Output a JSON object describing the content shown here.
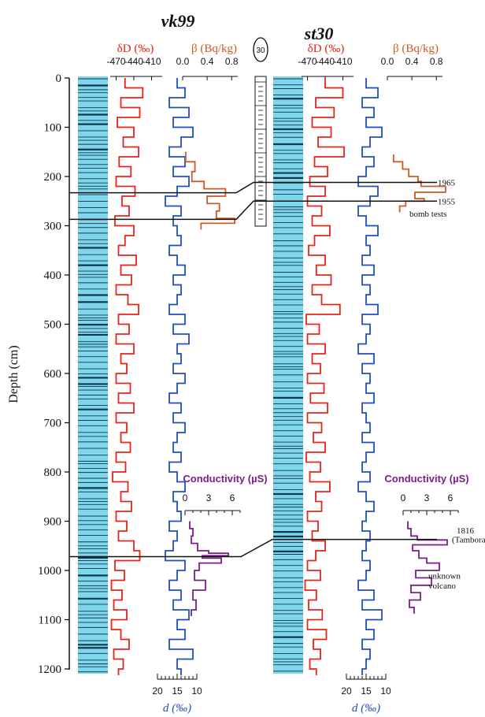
{
  "chart_data": {
    "type": "line",
    "y_axis": {
      "label": "Depth (cm)",
      "range": [
        0,
        1200
      ],
      "ticks": [
        0,
        100,
        200,
        300,
        400,
        500,
        600,
        700,
        800,
        900,
        1000,
        1100,
        1200
      ],
      "inverted": true
    },
    "scale_badge": "30",
    "colors": {
      "dD": "#e8231b",
      "d_excess": "#1f4fbf",
      "beta": "#cc5a22",
      "conductivity": "#7a1f8a",
      "ice_column": "#7fd6ec",
      "layer_lines": "#0b3b4b"
    },
    "cores": [
      {
        "name": "vk99",
        "dD_axis": {
          "label": "δD (‰)",
          "ticks": [
            -470,
            -440,
            -410
          ]
        },
        "beta_axis": {
          "label": "β (Bq/kg)",
          "ticks": [
            0.0,
            0.4,
            0.8
          ]
        },
        "d_axis": {
          "label": "d (‰)",
          "ticks": [
            20,
            15,
            10
          ]
        },
        "conductivity_axis": {
          "label": "Conductivity (µS)",
          "ticks": [
            0,
            3,
            6
          ]
        },
        "dD": {
          "depth": [
            0,
            20,
            40,
            60,
            80,
            100,
            120,
            140,
            160,
            180,
            200,
            220,
            240,
            260,
            280,
            300,
            320,
            340,
            360,
            380,
            400,
            420,
            440,
            460,
            480,
            500,
            520,
            540,
            560,
            580,
            600,
            620,
            640,
            660,
            680,
            700,
            720,
            740,
            760,
            780,
            800,
            820,
            840,
            860,
            880,
            900,
            920,
            940,
            960,
            980,
            1000,
            1020,
            1040,
            1060,
            1080,
            1100,
            1120,
            1140,
            1160,
            1180,
            1200
          ],
          "values": [
            -455,
            -425,
            -462,
            -430,
            -468,
            -440,
            -458,
            -432,
            -465,
            -445,
            -470,
            -438,
            -460,
            -448,
            -472,
            -440,
            -455,
            -466,
            -436,
            -462,
            -444,
            -470,
            -450,
            -432,
            -466,
            -448,
            -470,
            -440,
            -462,
            -452,
            -470,
            -446,
            -466,
            -440,
            -470,
            -452,
            -462,
            -446,
            -470,
            -454,
            -476,
            -450,
            -462,
            -444,
            -470,
            -452,
            -466,
            -440,
            -430,
            -472,
            -456,
            -478,
            -460,
            -474,
            -452,
            -478,
            -462,
            -448,
            -474,
            -458,
            -466
          ]
        },
        "d_excess": {
          "depth": [
            0,
            20,
            40,
            60,
            80,
            100,
            120,
            140,
            160,
            180,
            200,
            220,
            240,
            260,
            280,
            300,
            320,
            340,
            360,
            380,
            400,
            420,
            440,
            460,
            480,
            500,
            520,
            540,
            560,
            580,
            600,
            620,
            640,
            660,
            680,
            700,
            720,
            740,
            760,
            780,
            800,
            820,
            840,
            860,
            880,
            900,
            920,
            940,
            960,
            980,
            1000,
            1020,
            1040,
            1060,
            1080,
            1100,
            1120,
            1140,
            1160,
            1180,
            1200
          ],
          "values": [
            15,
            13,
            17,
            12,
            16,
            11,
            14,
            17,
            13,
            16,
            12,
            15,
            18,
            14,
            16,
            15,
            14,
            17,
            15,
            13,
            16,
            14,
            15,
            17,
            13,
            16,
            12,
            15,
            14,
            16,
            13,
            15,
            17,
            14,
            16,
            13,
            15,
            16,
            14,
            17,
            15,
            13,
            16,
            15,
            14,
            17,
            15,
            16,
            18,
            13,
            15,
            17,
            14,
            16,
            12,
            15,
            13,
            17,
            11,
            15,
            14
          ]
        },
        "beta": {
          "depth": [
            150,
            170,
            190,
            210,
            225,
            240,
            255,
            270,
            285,
            295
          ],
          "values": [
            0.05,
            0.2,
            0.15,
            0.35,
            0.7,
            0.4,
            0.6,
            0.55,
            0.85,
            0.3
          ]
        },
        "conductivity": {
          "depth": [
            900,
            915,
            930,
            945,
            960,
            965,
            970,
            975,
            985,
            1000,
            1020,
            1040,
            1060,
            1080
          ],
          "values": [
            0.6,
            1.0,
            0.8,
            1.6,
            3.0,
            5.5,
            2.2,
            4.6,
            1.8,
            1.2,
            2.6,
            1.0,
            1.4,
            0.8
          ]
        }
      },
      {
        "name": "st30",
        "dD_axis": {
          "label": "δD (‰)",
          "ticks": [
            -470,
            -440,
            -410
          ]
        },
        "beta_axis": {
          "label": "β (Bq/kg)",
          "ticks": [
            0.0,
            0.4,
            0.8
          ]
        },
        "d_axis": {
          "label": "d (‰)",
          "ticks": [
            20,
            15,
            10
          ]
        },
        "conductivity_axis": {
          "label": "Conductivity (µS)",
          "ticks": [
            0,
            3,
            6
          ]
        },
        "dD": {
          "depth": [
            0,
            20,
            40,
            60,
            80,
            100,
            120,
            140,
            160,
            180,
            200,
            220,
            240,
            260,
            280,
            300,
            320,
            340,
            360,
            380,
            400,
            420,
            440,
            460,
            480,
            500,
            520,
            540,
            560,
            580,
            600,
            620,
            640,
            660,
            680,
            700,
            720,
            740,
            760,
            780,
            800,
            820,
            840,
            860,
            880,
            900,
            920,
            940,
            960,
            980,
            1000,
            1020,
            1040,
            1060,
            1080,
            1100,
            1120,
            1140,
            1160,
            1180,
            1200
          ],
          "values": [
            -440,
            -410,
            -456,
            -425,
            -462,
            -430,
            -452,
            -408,
            -458,
            -436,
            -466,
            -440,
            -470,
            -446,
            -462,
            -432,
            -458,
            -468,
            -440,
            -455,
            -430,
            -462,
            -446,
            -415,
            -472,
            -450,
            -470,
            -440,
            -462,
            -448,
            -470,
            -442,
            -465,
            -436,
            -470,
            -446,
            -460,
            -440,
            -472,
            -448,
            -466,
            -432,
            -456,
            -446,
            -470,
            -452,
            -462,
            -440,
            -456,
            -470,
            -448,
            -474,
            -455,
            -468,
            -445,
            -470,
            -438,
            -460,
            -448,
            -466,
            -455
          ]
        },
        "d_excess": {
          "depth": [
            0,
            20,
            40,
            60,
            80,
            100,
            120,
            140,
            160,
            180,
            200,
            220,
            240,
            260,
            280,
            300,
            320,
            340,
            360,
            380,
            400,
            420,
            440,
            460,
            480,
            500,
            520,
            540,
            560,
            580,
            600,
            620,
            640,
            660,
            680,
            700,
            720,
            740,
            760,
            780,
            800,
            820,
            840,
            860,
            880,
            900,
            920,
            940,
            960,
            980,
            1000,
            1020,
            1040,
            1060,
            1080,
            1100,
            1120,
            1140,
            1160,
            1180,
            1200
          ],
          "values": [
            15,
            12,
            16,
            13,
            15,
            11,
            14,
            16,
            13,
            15,
            17,
            12,
            14,
            17,
            15,
            12,
            15,
            14,
            16,
            13,
            16,
            14,
            15,
            12,
            16,
            14,
            15,
            17,
            13,
            16,
            14,
            15,
            13,
            16,
            15,
            14,
            16,
            13,
            15,
            16,
            14,
            17,
            15,
            13,
            15,
            16,
            14,
            15,
            16,
            14,
            15,
            17,
            13,
            16,
            11,
            15,
            13,
            16,
            14,
            15,
            16
          ]
        },
        "beta": {
          "depth": [
            155,
            170,
            185,
            200,
            210,
            220,
            232,
            245,
            250,
            260
          ],
          "values": [
            0.1,
            0.25,
            0.35,
            0.5,
            0.55,
            0.95,
            0.45,
            0.6,
            0.3,
            0.2
          ]
        },
        "conductivity": {
          "depth": [
            900,
            915,
            930,
            938,
            948,
            960,
            975,
            985,
            1000,
            1015,
            1030,
            1045,
            1060,
            1075
          ],
          "values": [
            0.6,
            1.0,
            1.8,
            5.6,
            1.2,
            2.0,
            3.0,
            4.6,
            1.6,
            3.6,
            1.0,
            2.2,
            0.8,
            1.4
          ]
        }
      }
    ],
    "annotations": [
      {
        "text": "1965",
        "depth": 212
      },
      {
        "text": "1955",
        "depth": 250
      },
      {
        "text": "bomb tests",
        "depth": 275
      },
      {
        "text": "1816",
        "depth": 918
      },
      {
        "text": "(Tambora)",
        "depth": 937
      },
      {
        "text": "unknown",
        "depth": 1010
      },
      {
        "text": "volcano",
        "depth": 1030
      }
    ]
  }
}
